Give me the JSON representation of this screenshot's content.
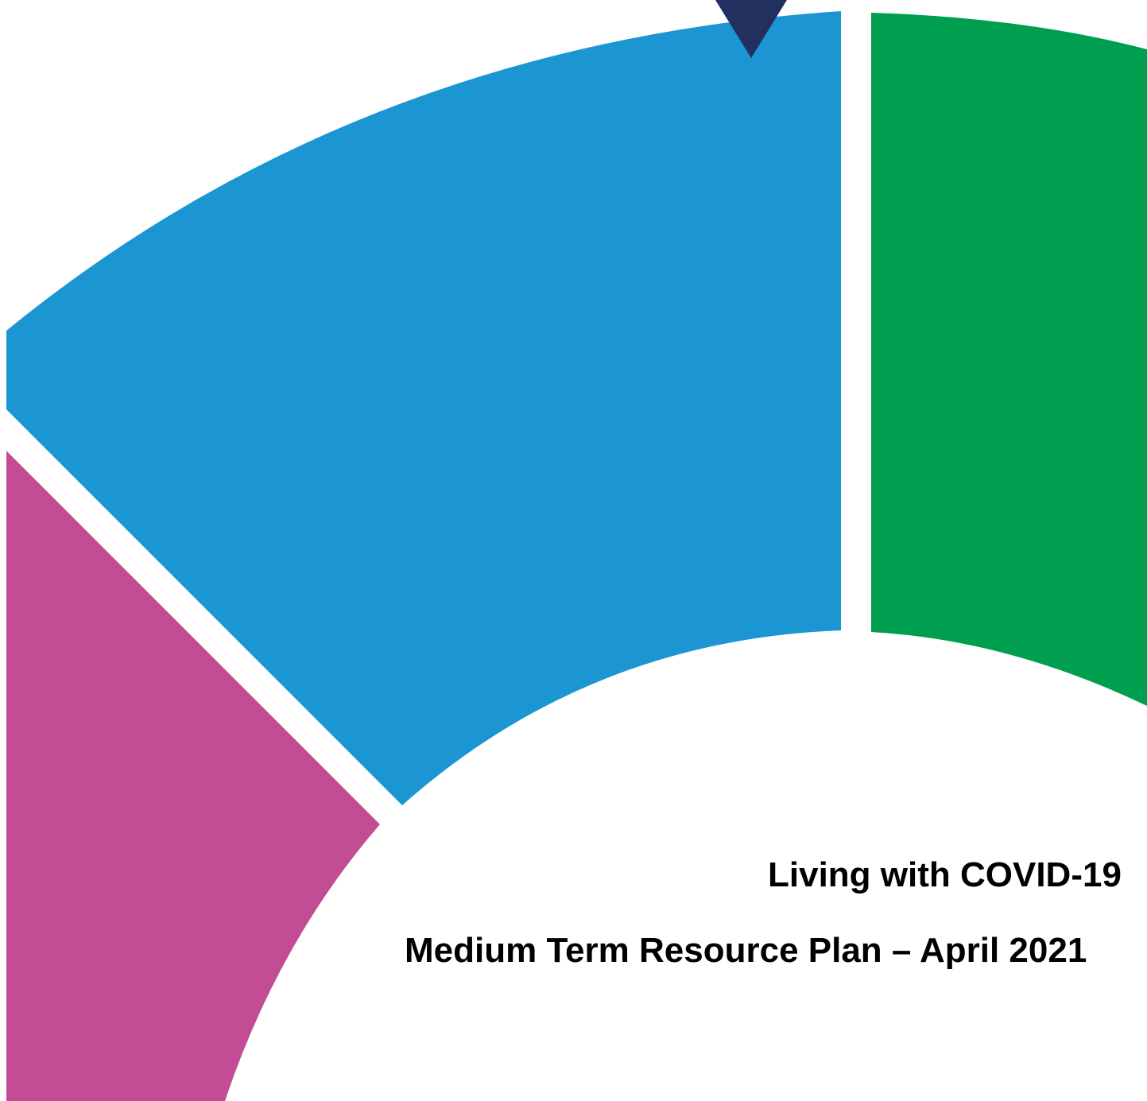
{
  "cover": {
    "title": "Living with COVID-19",
    "subtitle": "Medium Term Resource Plan – April 2021"
  },
  "colors": {
    "background": "#ffffff",
    "segment_blue": "#1B96D3",
    "segment_green": "#009E4F",
    "segment_magenta": "#C24D94",
    "pointer_navy": "#22305F",
    "text": "#000000"
  }
}
